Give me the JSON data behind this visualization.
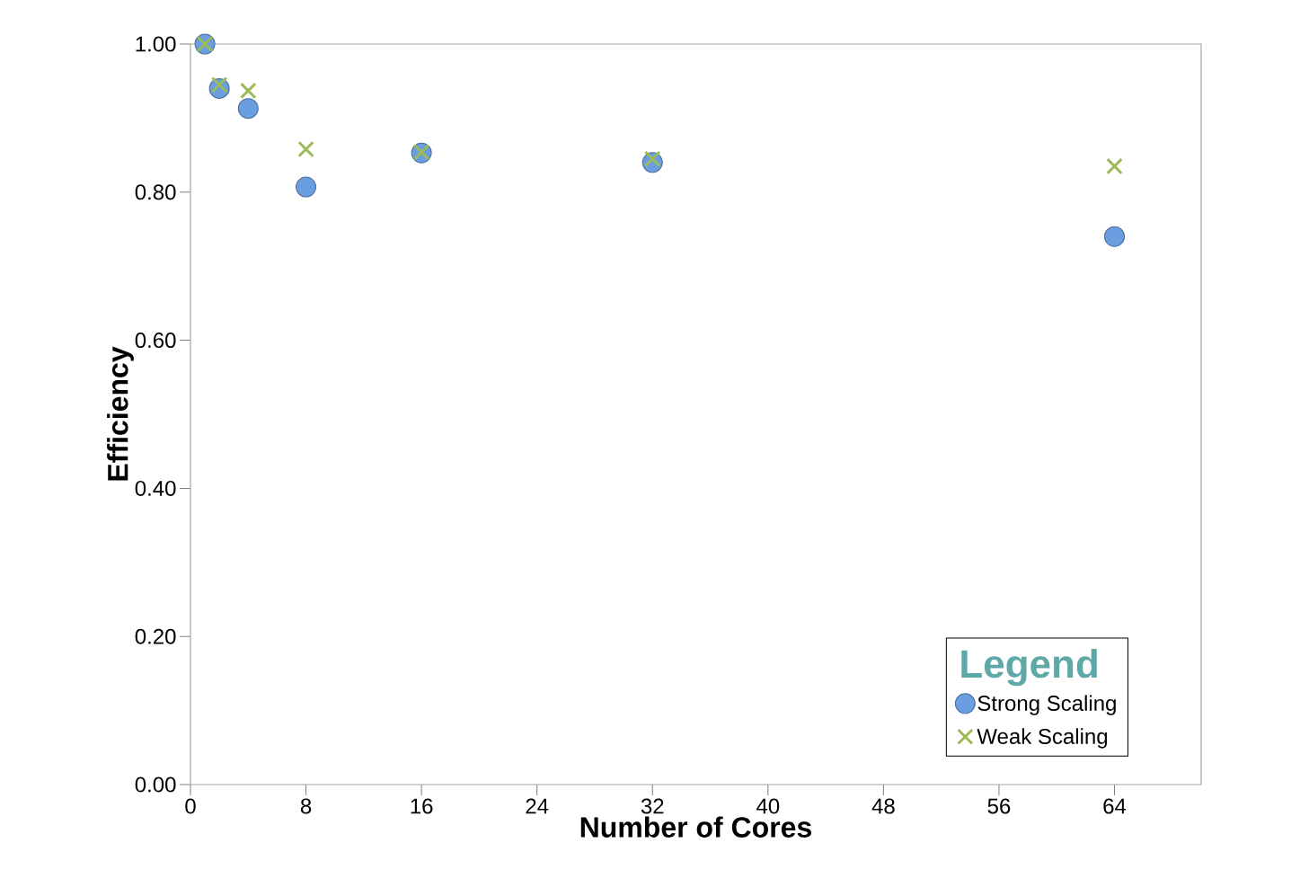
{
  "chart_data": {
    "type": "scatter",
    "xlabel": "Number of Cores",
    "ylabel": "Efficiency",
    "legend_title": "Legend",
    "xlim": [
      0,
      70
    ],
    "xticks": [
      0,
      8,
      16,
      24,
      32,
      40,
      48,
      56,
      64
    ],
    "ylim": [
      0,
      1.0
    ],
    "yticks": [
      {
        "value": 0,
        "label": "0.00"
      },
      {
        "value": 0.2,
        "label": "0.20"
      },
      {
        "value": 0.4,
        "label": "0.40"
      },
      {
        "value": 0.6,
        "label": "0.60"
      },
      {
        "value": 0.8,
        "label": "0.80"
      },
      {
        "value": 1.0,
        "label": "1.00"
      }
    ],
    "x": [
      1,
      2,
      4,
      8,
      16,
      32,
      64
    ],
    "series": [
      {
        "name": "Strong Scaling",
        "color": "#6a9ee0",
        "marker": "circle",
        "values": [
          1.0,
          0.94,
          0.913,
          0.807,
          0.853,
          0.84,
          0.74
        ]
      },
      {
        "name": "Weak Scaling",
        "color": "#9bbb59",
        "marker": "cross",
        "values": [
          1.0,
          0.945,
          0.937,
          0.858,
          0.854,
          0.845,
          0.835
        ]
      }
    ],
    "legend": "bottom right",
    "grid": false
  }
}
